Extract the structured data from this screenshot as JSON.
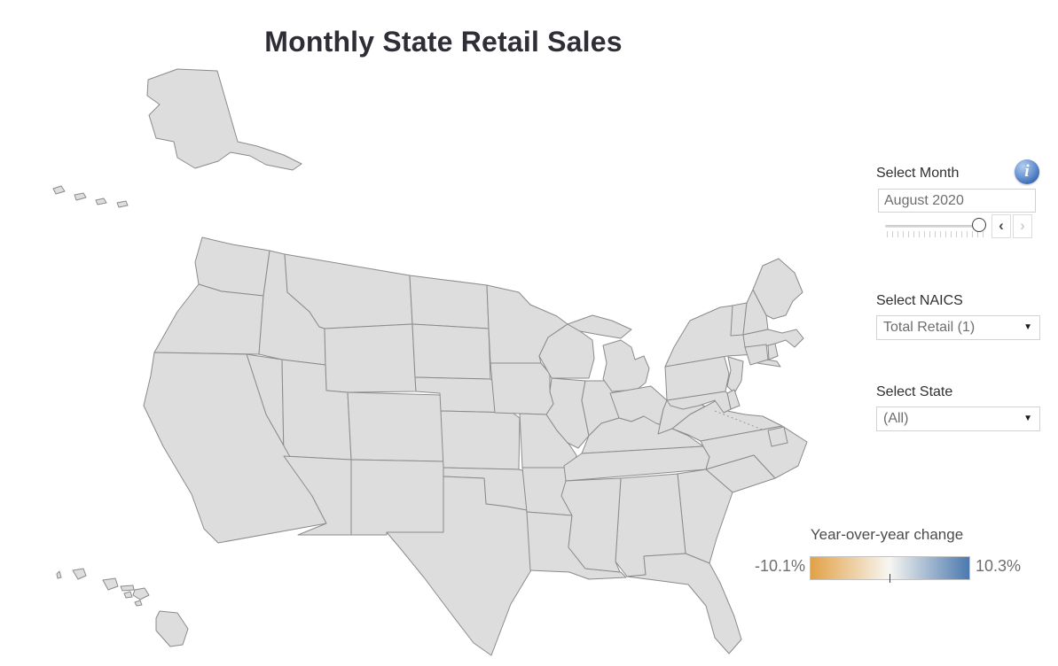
{
  "title": "Monthly State Retail Sales",
  "controls": {
    "month": {
      "label": "Select Month",
      "value": "August 2020",
      "prev_button": "‹",
      "next_button": "›"
    },
    "naics": {
      "label": "Select NAICS",
      "value": "Total Retail (1)",
      "caret": "▼"
    },
    "state": {
      "label": "Select State",
      "value": "(All)",
      "caret": "▼"
    },
    "info_icon_glyph": "i"
  },
  "legend": {
    "title": "Year-over-year change",
    "min_label": "-10.1%",
    "max_label": "10.3%",
    "min_value": -10.1,
    "max_value": 10.3,
    "unit": "%",
    "min_color": "#E2A147",
    "mid_color": "#F7F6F2",
    "max_color": "#4C79AE",
    "zero_tick_position_pct": 49.5
  },
  "chart_data": {
    "type": "choropleth",
    "region": "United States",
    "title": "Monthly State Retail Sales",
    "metric": "Year-over-year change in retail sales",
    "month": "August 2020",
    "naics": "Total Retail (1)",
    "state_filter": "(All)",
    "scale": {
      "min": -10.1,
      "max": 10.3,
      "unit": "%",
      "palette": "diverging orange (negative) to blue (positive)"
    },
    "states": [
      {
        "abbr": "WA",
        "name": "Washington",
        "color": "#D7DCE6"
      },
      {
        "abbr": "OR",
        "name": "Oregon",
        "color": "#E3E0D5"
      },
      {
        "abbr": "CA",
        "name": "California",
        "color": "#E2B277"
      },
      {
        "abbr": "NV",
        "name": "Nevada",
        "color": "#DFDDD2"
      },
      {
        "abbr": "ID",
        "name": "Idaho",
        "color": "#E7D7B6"
      },
      {
        "abbr": "MT",
        "name": "Montana",
        "color": "#8EA7C8"
      },
      {
        "abbr": "WY",
        "name": "Wyoming",
        "color": "#D8DFE8"
      },
      {
        "abbr": "UT",
        "name": "Utah",
        "color": "#E3C89B"
      },
      {
        "abbr": "CO",
        "name": "Colorado",
        "color": "#E5D2AC"
      },
      {
        "abbr": "AZ",
        "name": "Arizona",
        "color": "#E8D5B0"
      },
      {
        "abbr": "NM",
        "name": "New Mexico",
        "color": "#E9D8B8"
      },
      {
        "abbr": "ND",
        "name": "North Dakota",
        "color": "#EDDFC0"
      },
      {
        "abbr": "SD",
        "name": "South Dakota",
        "color": "#CDD5E1"
      },
      {
        "abbr": "NE",
        "name": "Nebraska",
        "color": "#8CA6CB"
      },
      {
        "abbr": "KS",
        "name": "Kansas",
        "color": "#9FB4D3"
      },
      {
        "abbr": "OK",
        "name": "Oklahoma",
        "color": "#A9BCD8"
      },
      {
        "abbr": "TX",
        "name": "Texas",
        "color": "#ECD3A4"
      },
      {
        "abbr": "MN",
        "name": "Minnesota",
        "color": "#93ABCE"
      },
      {
        "abbr": "IA",
        "name": "Iowa",
        "color": "#6F92C0"
      },
      {
        "abbr": "MO",
        "name": "Missouri",
        "color": "#8BA4C9"
      },
      {
        "abbr": "AR",
        "name": "Arkansas",
        "color": "#7E9CC6"
      },
      {
        "abbr": "LA",
        "name": "Louisiana",
        "color": "#7E9BC4"
      },
      {
        "abbr": "WI",
        "name": "Wisconsin",
        "color": "#8AA3C9"
      },
      {
        "abbr": "IL",
        "name": "Illinois",
        "color": "#B6C3DA"
      },
      {
        "abbr": "MI",
        "name": "Michigan",
        "color": "#C5CEDB"
      },
      {
        "abbr": "IN",
        "name": "Indiana",
        "color": "#5C84BB"
      },
      {
        "abbr": "OH",
        "name": "Ohio",
        "color": "#B0BDD3"
      },
      {
        "abbr": "KY",
        "name": "Kentucky",
        "color": "#5D83B8"
      },
      {
        "abbr": "TN",
        "name": "Tennessee",
        "color": "#4B74A8"
      },
      {
        "abbr": "MS",
        "name": "Mississippi",
        "color": "#3F6EA8"
      },
      {
        "abbr": "AL",
        "name": "Alabama",
        "color": "#5C84B8"
      },
      {
        "abbr": "GA",
        "name": "Georgia",
        "color": "#C2CCDB"
      },
      {
        "abbr": "FL",
        "name": "Florida",
        "color": "#DEE0E3"
      },
      {
        "abbr": "SC",
        "name": "South Carolina",
        "color": "#8AA3CA"
      },
      {
        "abbr": "NC",
        "name": "North Carolina",
        "color": "#D9DDE2"
      },
      {
        "abbr": "VA",
        "name": "Virginia",
        "color": "#E7E3D3"
      },
      {
        "abbr": "WV",
        "name": "West Virginia",
        "color": "#85A0C6"
      },
      {
        "abbr": "MD",
        "name": "Maryland",
        "color": "#E2BE85"
      },
      {
        "abbr": "DE",
        "name": "Delaware",
        "color": "#E3C492"
      },
      {
        "abbr": "DC",
        "name": "District of Columbia",
        "color": "#E5C48F"
      },
      {
        "abbr": "PA",
        "name": "Pennsylvania",
        "color": "#EAD2A6"
      },
      {
        "abbr": "NJ",
        "name": "New Jersey",
        "color": "#CCD2DD"
      },
      {
        "abbr": "NY",
        "name": "New York",
        "color": "#B9C4DC"
      },
      {
        "abbr": "CT",
        "name": "Connecticut",
        "color": "#B9C7DC"
      },
      {
        "abbr": "RI",
        "name": "Rhode Island",
        "color": "#C9D2DF"
      },
      {
        "abbr": "MA",
        "name": "Massachusetts",
        "color": "#DDDDD9"
      },
      {
        "abbr": "VT",
        "name": "Vermont",
        "color": "#E7D4AE"
      },
      {
        "abbr": "NH",
        "name": "New Hampshire",
        "color": "#E8D0A8"
      },
      {
        "abbr": "ME",
        "name": "Maine",
        "color": "#7E9CC6"
      },
      {
        "abbr": "AK",
        "name": "Alaska",
        "color": "#DFC49E"
      },
      {
        "abbr": "HI",
        "name": "Hawaii",
        "color": "#E0A757"
      }
    ]
  }
}
